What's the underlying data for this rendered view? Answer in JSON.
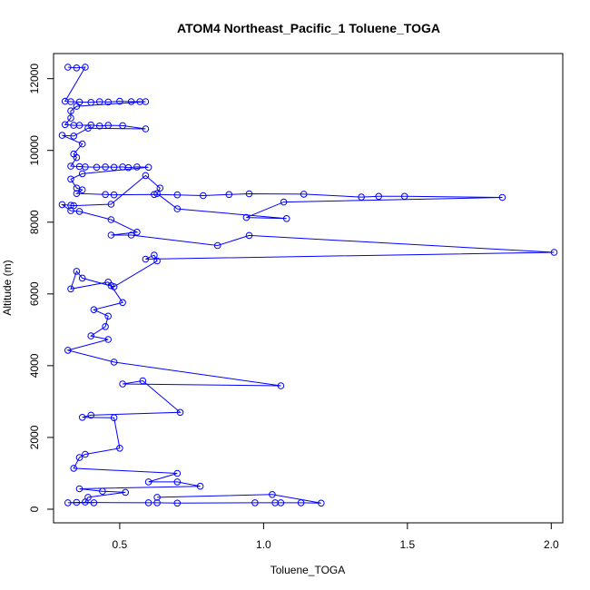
{
  "chart_data": {
    "type": "line",
    "title": "ATOM4 Northeast_Pacific_1 Toluene_TOGA",
    "xlabel": "Toluene_TOGA",
    "ylabel": "Altitude (m)",
    "xlim": [
      0.27,
      2.04
    ],
    "ylim": [
      -380,
      12700
    ],
    "x_ticks": [
      0.5,
      1.0,
      1.5,
      2.0
    ],
    "x_tick_labels": [
      "0.5",
      "1.0",
      "1.5",
      "2.0"
    ],
    "y_ticks": [
      0,
      2000,
      4000,
      6000,
      8000,
      10000,
      12000
    ],
    "y_tick_labels": [
      "0",
      "2000",
      "4000",
      "6000",
      "8000",
      "10000",
      "12000"
    ],
    "grid": false,
    "legend": "none",
    "marker": "open-circle",
    "series_color": "#0000ff",
    "series": [
      {
        "points": [
          [
            0.32,
            12320
          ],
          [
            0.35,
            12300
          ],
          [
            0.38,
            12320
          ],
          [
            0.31,
            11370
          ],
          [
            0.33,
            11360
          ],
          [
            0.36,
            11350
          ],
          [
            0.4,
            11340
          ],
          [
            0.43,
            11360
          ],
          [
            0.46,
            11350
          ],
          [
            0.5,
            11370
          ],
          [
            0.54,
            11360
          ],
          [
            0.57,
            11360
          ],
          [
            0.59,
            11360
          ],
          [
            0.35,
            11230
          ],
          [
            0.33,
            11100
          ],
          [
            0.33,
            10900
          ],
          [
            0.31,
            10720
          ],
          [
            0.34,
            10700
          ],
          [
            0.36,
            10700
          ],
          [
            0.4,
            10710
          ],
          [
            0.43,
            10680
          ],
          [
            0.46,
            10700
          ],
          [
            0.51,
            10690
          ],
          [
            0.59,
            10600
          ],
          [
            0.39,
            10620
          ],
          [
            0.34,
            10400
          ],
          [
            0.3,
            10420
          ],
          [
            0.37,
            10180
          ],
          [
            0.34,
            9900
          ],
          [
            0.35,
            9800
          ],
          [
            0.33,
            9560
          ],
          [
            0.36,
            9550
          ],
          [
            0.38,
            9540
          ],
          [
            0.42,
            9530
          ],
          [
            0.45,
            9540
          ],
          [
            0.48,
            9530
          ],
          [
            0.51,
            9540
          ],
          [
            0.53,
            9520
          ],
          [
            0.56,
            9540
          ],
          [
            0.6,
            9530
          ],
          [
            0.37,
            9350
          ],
          [
            0.33,
            9200
          ],
          [
            0.35,
            8950
          ],
          [
            0.37,
            8900
          ],
          [
            0.35,
            8800
          ],
          [
            0.45,
            8770
          ],
          [
            0.48,
            8760
          ],
          [
            0.62,
            8770
          ],
          [
            0.7,
            8760
          ],
          [
            0.79,
            8740
          ],
          [
            0.88,
            8770
          ],
          [
            0.95,
            8790
          ],
          [
            1.14,
            8780
          ],
          [
            1.34,
            8700
          ],
          [
            1.4,
            8720
          ],
          [
            1.49,
            8720
          ],
          [
            1.83,
            8690
          ],
          [
            1.07,
            8560
          ],
          [
            0.94,
            8130
          ],
          [
            1.08,
            8100
          ],
          [
            0.7,
            8370
          ],
          [
            0.63,
            8800
          ],
          [
            0.64,
            8950
          ],
          [
            0.59,
            9300
          ],
          [
            0.47,
            8500
          ],
          [
            0.34,
            8460
          ],
          [
            0.33,
            8470
          ],
          [
            0.3,
            8490
          ],
          [
            0.33,
            8320
          ],
          [
            0.36,
            8300
          ],
          [
            0.47,
            8070
          ],
          [
            0.56,
            7720
          ],
          [
            0.47,
            7640
          ],
          [
            0.54,
            7640
          ],
          [
            0.84,
            7350
          ],
          [
            0.95,
            7630
          ],
          [
            2.01,
            7160
          ],
          [
            0.59,
            6970
          ],
          [
            0.62,
            7080
          ],
          [
            0.63,
            6920
          ],
          [
            0.48,
            6200
          ],
          [
            0.37,
            6440
          ],
          [
            0.35,
            6630
          ],
          [
            0.33,
            6140
          ],
          [
            0.46,
            6330
          ],
          [
            0.47,
            6230
          ],
          [
            0.51,
            5760
          ],
          [
            0.41,
            5560
          ],
          [
            0.46,
            5380
          ],
          [
            0.45,
            5090
          ],
          [
            0.4,
            4830
          ],
          [
            0.46,
            4730
          ],
          [
            0.32,
            4430
          ],
          [
            0.48,
            4100
          ],
          [
            1.06,
            3440
          ],
          [
            0.51,
            3490
          ],
          [
            0.58,
            3580
          ],
          [
            0.71,
            2700
          ],
          [
            0.4,
            2620
          ],
          [
            0.37,
            2560
          ],
          [
            0.48,
            2550
          ],
          [
            0.5,
            1700
          ],
          [
            0.38,
            1530
          ],
          [
            0.36,
            1440
          ],
          [
            0.34,
            1140
          ],
          [
            0.7,
            1000
          ],
          [
            0.6,
            760
          ],
          [
            0.7,
            760
          ],
          [
            0.78,
            640
          ],
          [
            0.36,
            570
          ],
          [
            0.44,
            500
          ],
          [
            0.52,
            470
          ],
          [
            0.39,
            330
          ],
          [
            0.38,
            200
          ],
          [
            0.41,
            180
          ],
          [
            0.32,
            180
          ],
          [
            0.35,
            190
          ],
          [
            0.6,
            180
          ],
          [
            0.63,
            180
          ],
          [
            0.7,
            170
          ],
          [
            0.97,
            180
          ],
          [
            1.04,
            180
          ],
          [
            1.06,
            180
          ],
          [
            1.13,
            180
          ],
          [
            1.2,
            170
          ],
          [
            1.03,
            410
          ],
          [
            0.63,
            330
          ]
        ]
      }
    ]
  }
}
